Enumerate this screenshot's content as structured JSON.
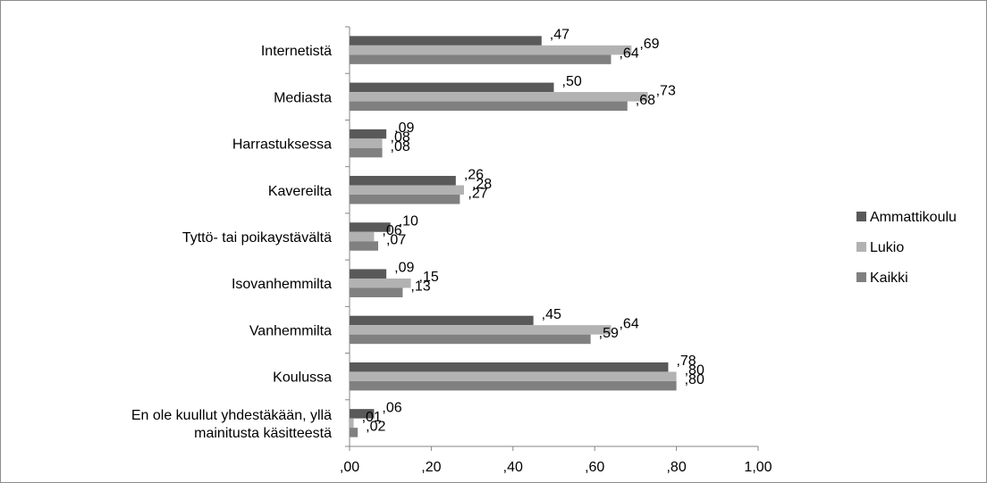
{
  "chart_data": {
    "type": "bar",
    "orientation": "horizontal",
    "categories": [
      "Internetistä",
      "Mediasta",
      "Harrastuksessa",
      "Kavereilta",
      "Tyttö- tai poikaystävältä",
      "Isovanhemmilta",
      "Vanhemmilta",
      "Koulussa",
      "En ole kuullut yhdestäkään, yllä mainitusta käsitteestä"
    ],
    "category_lines": [
      [
        "Internetistä"
      ],
      [
        "Mediasta"
      ],
      [
        "Harrastuksessa"
      ],
      [
        "Kavereilta"
      ],
      [
        "Tyttö- tai poikaystävältä"
      ],
      [
        "Isovanhemmilta"
      ],
      [
        "Vanhemmilta"
      ],
      [
        "Koulussa"
      ],
      [
        "En ole kuullut yhdestäkään, yllä",
        "mainitusta käsitteestä"
      ]
    ],
    "series": [
      {
        "name": "Ammattikoulu",
        "color": "#595959",
        "values": [
          0.47,
          0.5,
          0.09,
          0.26,
          0.1,
          0.09,
          0.45,
          0.78,
          0.06
        ],
        "labels": [
          ",47",
          ",50",
          ",09",
          ",26",
          ",10",
          ",09",
          ",45",
          ",78",
          ",06"
        ]
      },
      {
        "name": "Lukio",
        "color": "#b2b2b2",
        "values": [
          0.69,
          0.73,
          0.08,
          0.28,
          0.06,
          0.15,
          0.64,
          0.8,
          0.01
        ],
        "labels": [
          ",69",
          ",73",
          ",08",
          ",28",
          ",06",
          ",15",
          ",64",
          ",80",
          ",01"
        ]
      },
      {
        "name": "Kaikki",
        "color": "#808080",
        "values": [
          0.64,
          0.68,
          0.08,
          0.27,
          0.07,
          0.13,
          0.59,
          0.8,
          0.02
        ],
        "labels": [
          ",64",
          ",68",
          ",08",
          ",27",
          ",07",
          ",13",
          ",59",
          ",80",
          ",02"
        ]
      }
    ],
    "xlim": [
      0,
      1.0
    ],
    "xticks": [
      ",00",
      ",20",
      ",40",
      ",60",
      ",80",
      "1,00"
    ],
    "title": "",
    "xlabel": "",
    "ylabel": "",
    "grid": false,
    "legend": "right"
  }
}
